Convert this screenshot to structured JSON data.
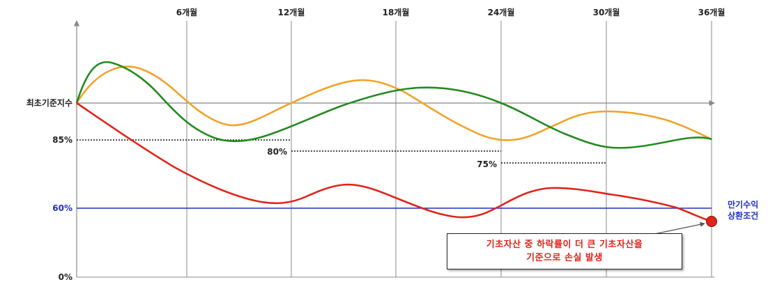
{
  "periods": [
    "6개월",
    "12개월",
    "18개월",
    "24개월",
    "30개월",
    "36개월"
  ],
  "y_labels": {
    "initial": "최초기준지수",
    "p85": "85%",
    "p60": "60%",
    "p0": "0%"
  },
  "barriers": {
    "b80": "80%",
    "b75": "75%"
  },
  "maturity_label": [
    "만기수익",
    "상환조건"
  ],
  "note": {
    "line1": "기초자산 중 하락률이 더 큰 기초자산을",
    "line2": "기준으로 손실 발생"
  },
  "colors": {
    "orange": "#f0a32a",
    "green": "#238a1f",
    "red": "#e0241b",
    "blue": "#1f2fbf",
    "grid": "#888888"
  }
}
